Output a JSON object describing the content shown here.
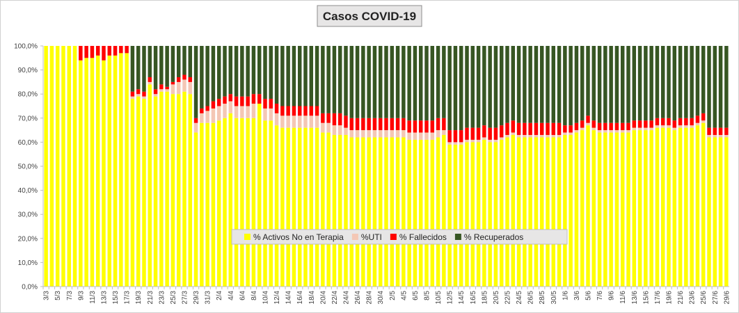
{
  "chart_data": {
    "type": "stacked_bar_100",
    "title": "Casos  COVID-19",
    "categories": [
      "3/3",
      null,
      "5/3",
      null,
      "7/3",
      null,
      "9/3",
      null,
      "11/3",
      null,
      "13/3",
      null,
      "15/3",
      null,
      "17/3",
      null,
      "19/3",
      null,
      "21/3",
      null,
      "23/3",
      null,
      "25/3",
      null,
      "27/3",
      null,
      "29/3",
      null,
      "31/3",
      null,
      "2/4",
      null,
      "4/4",
      null,
      "6/4",
      null,
      "8/4",
      null,
      "10/4",
      null,
      "12/4",
      null,
      "14/4",
      null,
      "16/4",
      null,
      "18/4",
      null,
      "20/4",
      null,
      "22/4",
      null,
      "24/4",
      null,
      "26/4",
      null,
      "28/4",
      null,
      "30/4",
      null,
      "2/5",
      null,
      "4/5",
      null,
      "6/5",
      null,
      "8/5",
      null,
      "10/5",
      null,
      "12/5",
      null,
      "14/5",
      null,
      "16/5",
      null,
      "18/5",
      null,
      "20/5",
      null,
      "22/5",
      null,
      "24/5",
      null,
      "26/5",
      null,
      "28/5",
      null,
      "30/5",
      null,
      "1/6",
      null,
      "3/6",
      null,
      "5/6",
      null,
      "7/6",
      null,
      "9/6",
      null,
      "11/6",
      null,
      "13/6",
      null,
      "15/6",
      null,
      "17/6",
      null,
      "19/6",
      null,
      "21/6",
      null,
      "23/6",
      null,
      "25/6",
      null,
      "27/6",
      null,
      "29/6"
    ],
    "series": [
      {
        "name": "% Activos No en Terapia",
        "color": "#ffff00",
        "values": [
          100,
          100,
          100,
          100,
          100,
          100,
          94,
          95,
          95,
          96,
          94,
          96,
          96,
          97,
          97,
          78,
          79,
          78,
          84,
          79,
          81,
          81,
          80,
          80,
          81,
          80,
          64,
          68,
          68,
          68,
          69,
          70,
          72,
          70,
          70,
          70,
          70,
          76,
          69,
          69,
          67,
          66,
          66,
          66,
          66,
          66,
          66,
          66,
          64,
          64,
          63,
          63,
          63,
          62,
          62,
          62,
          62,
          62,
          62,
          62,
          62,
          62,
          62,
          61,
          61,
          61,
          61,
          61,
          62,
          63,
          59,
          59,
          59,
          60,
          60,
          60,
          61,
          60,
          60,
          61,
          62,
          63,
          62,
          62,
          62,
          62,
          62,
          62,
          62,
          62,
          63,
          63,
          64,
          65,
          67,
          65,
          64,
          64,
          64,
          64,
          64,
          64,
          65,
          65,
          65,
          65,
          66,
          66,
          66,
          65,
          66,
          66,
          66,
          67,
          68,
          62,
          62,
          62,
          62
        ]
      },
      {
        "name": "%UTI",
        "color": "#f4c7b5",
        "values": [
          0,
          0,
          0,
          0,
          0,
          0,
          0,
          0,
          0,
          0,
          0,
          0,
          0,
          0,
          0,
          1,
          1,
          1,
          1,
          1,
          1,
          1,
          4,
          5,
          5,
          5,
          4,
          4,
          5,
          6,
          6,
          6,
          5,
          5,
          5,
          5,
          6,
          0,
          5,
          5,
          5,
          5,
          5,
          5,
          5,
          5,
          5,
          5,
          4,
          4,
          4,
          4,
          3,
          3,
          3,
          3,
          3,
          3,
          3,
          3,
          3,
          3,
          3,
          3,
          3,
          3,
          3,
          3,
          3,
          2,
          1,
          1,
          1,
          1,
          1,
          1,
          1,
          1,
          1,
          1,
          1,
          1,
          1,
          1,
          1,
          1,
          1,
          1,
          1,
          1,
          1,
          1,
          1,
          1,
          1,
          1,
          1,
          1,
          1,
          1,
          1,
          1,
          1,
          1,
          1,
          1,
          1,
          1,
          1,
          1,
          1,
          1,
          1,
          1,
          1,
          1,
          1,
          1,
          1
        ]
      },
      {
        "name": "% Fallecidos",
        "color": "#ff0000",
        "values": [
          0,
          0,
          0,
          0,
          0,
          0,
          6,
          5,
          5,
          4,
          6,
          4,
          4,
          3,
          3,
          2,
          2,
          2,
          2,
          2,
          2,
          1,
          1,
          2,
          2,
          2,
          2,
          2,
          2,
          3,
          3,
          3,
          3,
          4,
          4,
          4,
          4,
          4,
          4,
          4,
          4,
          4,
          4,
          4,
          4,
          4,
          4,
          4,
          4,
          4,
          5,
          5,
          5,
          5,
          5,
          5,
          5,
          5,
          5,
          5,
          5,
          5,
          5,
          5,
          5,
          5,
          5,
          5,
          5,
          5,
          5,
          5,
          5,
          5,
          5,
          5,
          5,
          5,
          5,
          5,
          5,
          5,
          5,
          5,
          5,
          5,
          5,
          5,
          5,
          5,
          3,
          3,
          3,
          3,
          3,
          3,
          3,
          3,
          3,
          3,
          3,
          3,
          3,
          3,
          3,
          3,
          3,
          3,
          3,
          3,
          3,
          3,
          3,
          3,
          3,
          3,
          3,
          3,
          3
        ]
      },
      {
        "name": "% Recuperados",
        "color": "#375623",
        "values": [
          0,
          0,
          0,
          0,
          0,
          0,
          0,
          0,
          0,
          0,
          0,
          0,
          0,
          0,
          0,
          19,
          18,
          19,
          13,
          18,
          16,
          17,
          15,
          13,
          12,
          13,
          30,
          26,
          25,
          23,
          22,
          21,
          20,
          21,
          21,
          21,
          20,
          20,
          22,
          22,
          24,
          25,
          25,
          25,
          25,
          25,
          25,
          25,
          28,
          28,
          28,
          28,
          29,
          30,
          30,
          30,
          30,
          30,
          30,
          30,
          30,
          30,
          30,
          31,
          31,
          31,
          31,
          31,
          30,
          30,
          35,
          35,
          35,
          34,
          34,
          34,
          33,
          34,
          34,
          33,
          32,
          31,
          32,
          32,
          32,
          32,
          32,
          32,
          32,
          32,
          33,
          33,
          32,
          31,
          29,
          31,
          32,
          32,
          32,
          32,
          32,
          32,
          31,
          31,
          31,
          31,
          30,
          30,
          30,
          31,
          30,
          30,
          30,
          29,
          28,
          34,
          34,
          34,
          34
        ]
      }
    ],
    "ylim": [
      0,
      100
    ],
    "yticks": [
      {
        "value": 0,
        "label": "0,0%"
      },
      {
        "value": 10,
        "label": "10,0%"
      },
      {
        "value": 20,
        "label": "20,0%"
      },
      {
        "value": 30,
        "label": "30,0%"
      },
      {
        "value": 40,
        "label": "40,0%"
      },
      {
        "value": 50,
        "label": "50,0%"
      },
      {
        "value": 60,
        "label": "60,0%"
      },
      {
        "value": 70,
        "label": "70,0%"
      },
      {
        "value": 80,
        "label": "80,0%"
      },
      {
        "value": 90,
        "label": "90,0%"
      },
      {
        "value": 100,
        "label": "100,0%"
      }
    ],
    "grid": false,
    "legend": "inside-bottom"
  }
}
